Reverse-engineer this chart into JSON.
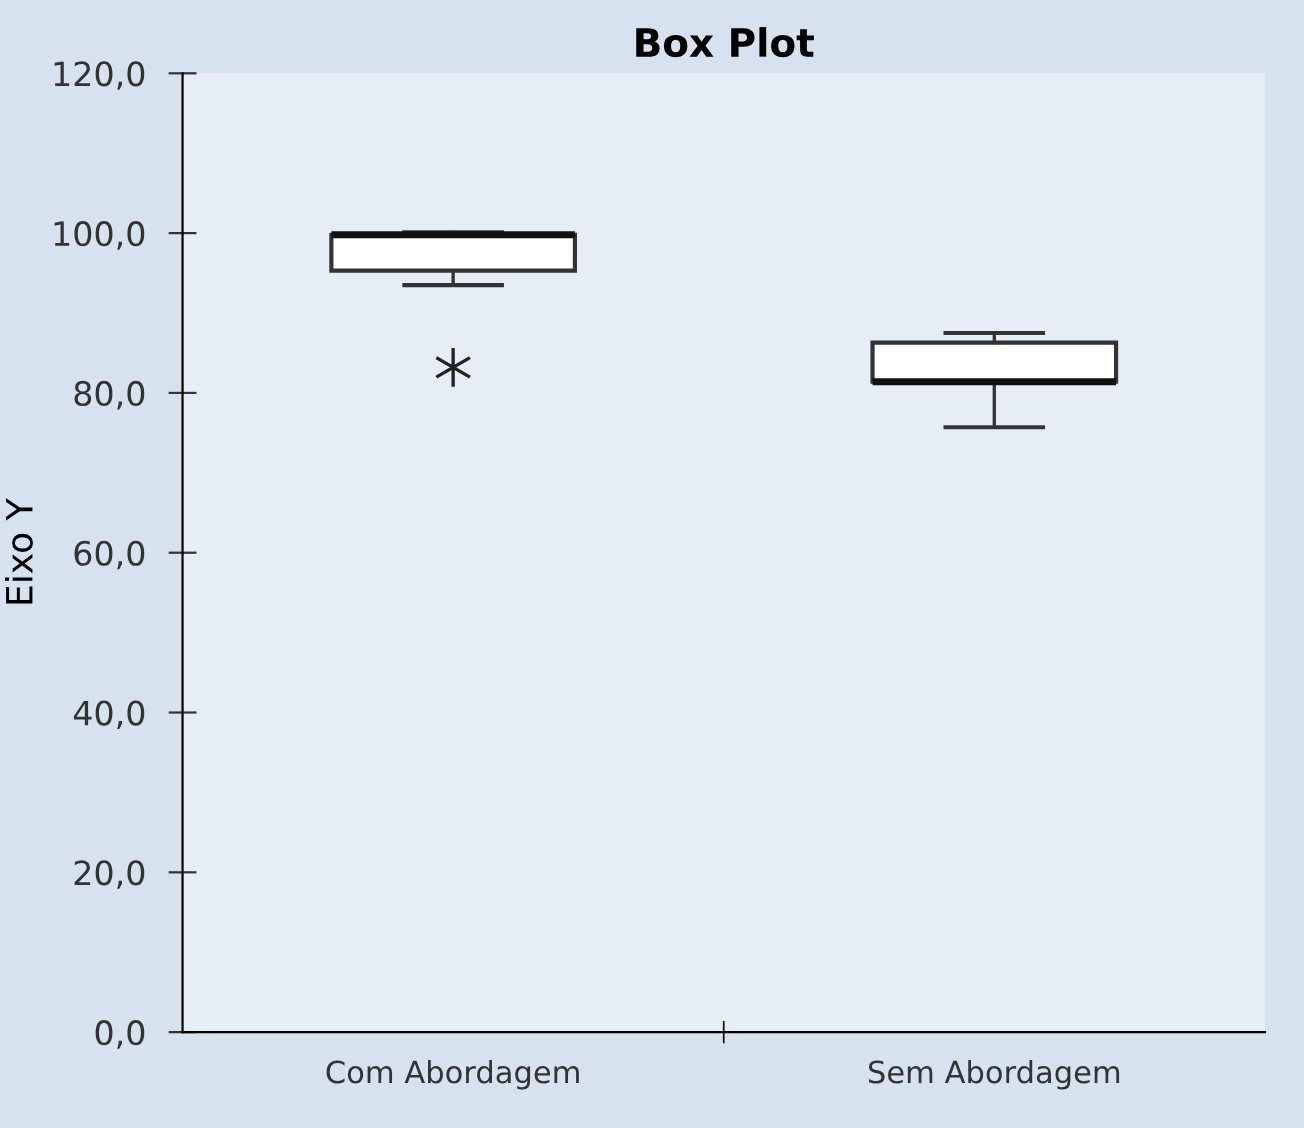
{
  "chart_data": {
    "type": "box",
    "title": "Box Plot",
    "ylabel": "Eixo Y",
    "categories": [
      "Com Abordagem",
      "Sem Abordagem"
    ],
    "boxes": [
      {
        "low": 93.5,
        "q1": 95.3,
        "median": 99.8,
        "q3": 99.8,
        "high": 100.1,
        "outliers": [
          83.2
        ]
      },
      {
        "low": 75.7,
        "q1": 81.4,
        "median": 81.4,
        "q3": 86.3,
        "high": 87.5
      }
    ],
    "ylim": [
      0,
      120
    ],
    "yticks": [
      {
        "value": 0,
        "label": "0,0"
      },
      {
        "value": 20,
        "label": "20,0"
      },
      {
        "value": 40,
        "label": "40,0"
      },
      {
        "value": 60,
        "label": "60,0"
      },
      {
        "value": 80,
        "label": "80,0"
      },
      {
        "value": 100,
        "label": "100,0"
      },
      {
        "value": 120,
        "label": "120,0"
      }
    ],
    "grid": false,
    "legend": false,
    "marker": "cross"
  }
}
